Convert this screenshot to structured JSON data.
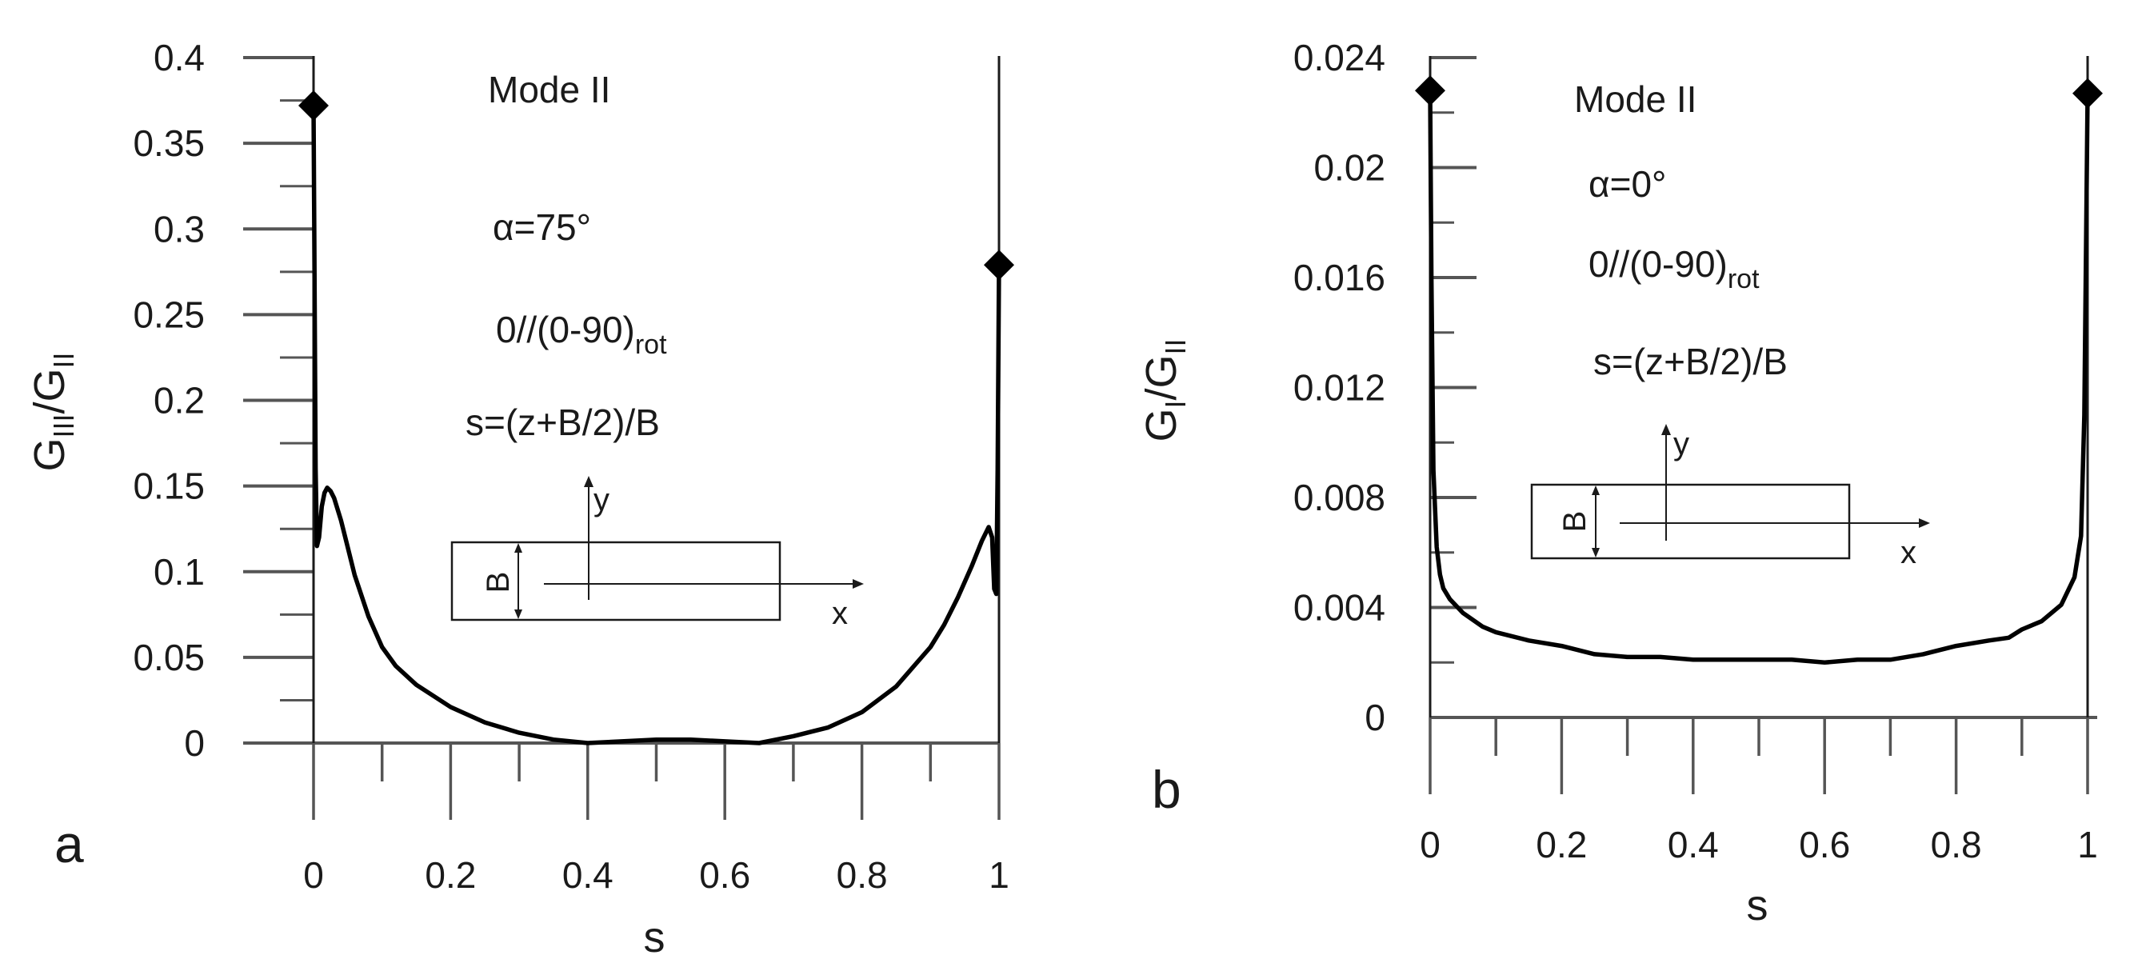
{
  "chart_data": [
    {
      "type": "line",
      "panel_label": "a",
      "xlabel": "s",
      "ylabel": {
        "base": "G",
        "sub_num": "III",
        "slash": "/",
        "base2": "G",
        "sub_den": "II"
      },
      "xlim": [
        0,
        1
      ],
      "ylim": [
        0,
        0.4
      ],
      "xticks": [
        0,
        0.2,
        0.4,
        0.6,
        0.8,
        1
      ],
      "xtick_labels": [
        "0",
        "0.2",
        "0.4",
        "0.6",
        "0.8",
        "1"
      ],
      "yticks": [
        0,
        0.05,
        0.1,
        0.15,
        0.2,
        0.25,
        0.3,
        0.35,
        0.4
      ],
      "ytick_labels": [
        "0",
        "0.05",
        "0.1",
        "0.15",
        "0.2",
        "0.25",
        "0.3",
        "0.35",
        "0.4"
      ],
      "annotations": {
        "mode": "Mode II",
        "angle": "α=75°",
        "layup_main": "0//(0-90)",
        "layup_sub": "rot",
        "formula": "s=(z+B/2)/B"
      },
      "inset": {
        "y_label": "y",
        "x_label": "x",
        "b_label": "B"
      },
      "series": [
        {
          "name": "GIII/GII",
          "x": [
            0,
            0.001,
            0.003,
            0.005,
            0.008,
            0.012,
            0.016,
            0.02,
            0.025,
            0.03,
            0.04,
            0.05,
            0.06,
            0.08,
            0.1,
            0.12,
            0.15,
            0.2,
            0.25,
            0.3,
            0.35,
            0.4,
            0.45,
            0.5,
            0.55,
            0.6,
            0.65,
            0.7,
            0.75,
            0.8,
            0.85,
            0.9,
            0.92,
            0.94,
            0.96,
            0.975,
            0.985,
            0.99,
            0.993,
            0.996,
            0.998,
            1
          ],
          "values": [
            0.372,
            0.3,
            0.16,
            0.115,
            0.12,
            0.138,
            0.146,
            0.149,
            0.147,
            0.143,
            0.13,
            0.114,
            0.098,
            0.074,
            0.056,
            0.045,
            0.034,
            0.021,
            0.012,
            0.006,
            0.002,
            0.0,
            0.001,
            0.002,
            0.002,
            0.001,
            0.0,
            0.004,
            0.009,
            0.018,
            0.033,
            0.056,
            0.069,
            0.085,
            0.103,
            0.118,
            0.126,
            0.12,
            0.09,
            0.087,
            0.16,
            0.28
          ]
        }
      ],
      "markers": [
        {
          "x": 0,
          "y": 0.372
        },
        {
          "x": 1,
          "y": 0.279
        }
      ]
    },
    {
      "type": "line",
      "panel_label": "b",
      "xlabel": "s",
      "ylabel": {
        "base": "G",
        "sub_num": "I",
        "slash": "/",
        "base2": "G",
        "sub_den": "II"
      },
      "xlim": [
        0,
        1
      ],
      "ylim": [
        0,
        0.024
      ],
      "xticks": [
        0,
        0.2,
        0.4,
        0.6,
        0.8,
        1
      ],
      "xtick_labels": [
        "0",
        "0.2",
        "0.4",
        "0.6",
        "0.8",
        "1"
      ],
      "yticks": [
        0,
        0.004,
        0.008,
        0.012,
        0.016,
        0.02,
        0.024
      ],
      "ytick_labels": [
        "0",
        "0.004",
        "0.008",
        "0.012",
        "0.016",
        "0.02",
        "0.024"
      ],
      "annotations": {
        "mode": "Mode II",
        "angle": "α=0°",
        "layup_main": "0//(0-90)",
        "layup_sub": "rot",
        "formula": "s=(z+B/2)/B"
      },
      "inset": {
        "y_label": "y",
        "x_label": "x",
        "b_label": "B"
      },
      "series": [
        {
          "name": "GI/GII",
          "x": [
            0,
            0.002,
            0.005,
            0.01,
            0.015,
            0.02,
            0.03,
            0.05,
            0.08,
            0.1,
            0.15,
            0.2,
            0.25,
            0.3,
            0.35,
            0.4,
            0.45,
            0.5,
            0.55,
            0.6,
            0.65,
            0.7,
            0.75,
            0.8,
            0.85,
            0.88,
            0.9,
            0.93,
            0.96,
            0.98,
            0.99,
            0.995,
            1
          ],
          "values": [
            0.0228,
            0.016,
            0.009,
            0.0062,
            0.0052,
            0.0047,
            0.0043,
            0.0038,
            0.0033,
            0.0031,
            0.0028,
            0.0026,
            0.0023,
            0.0022,
            0.0022,
            0.0021,
            0.0021,
            0.0021,
            0.0021,
            0.002,
            0.0021,
            0.0021,
            0.0023,
            0.0026,
            0.0028,
            0.0029,
            0.0032,
            0.0035,
            0.0041,
            0.0051,
            0.0066,
            0.011,
            0.0227
          ]
        }
      ],
      "markers": [
        {
          "x": 0,
          "y": 0.0228
        },
        {
          "x": 1,
          "y": 0.0227
        }
      ]
    }
  ]
}
